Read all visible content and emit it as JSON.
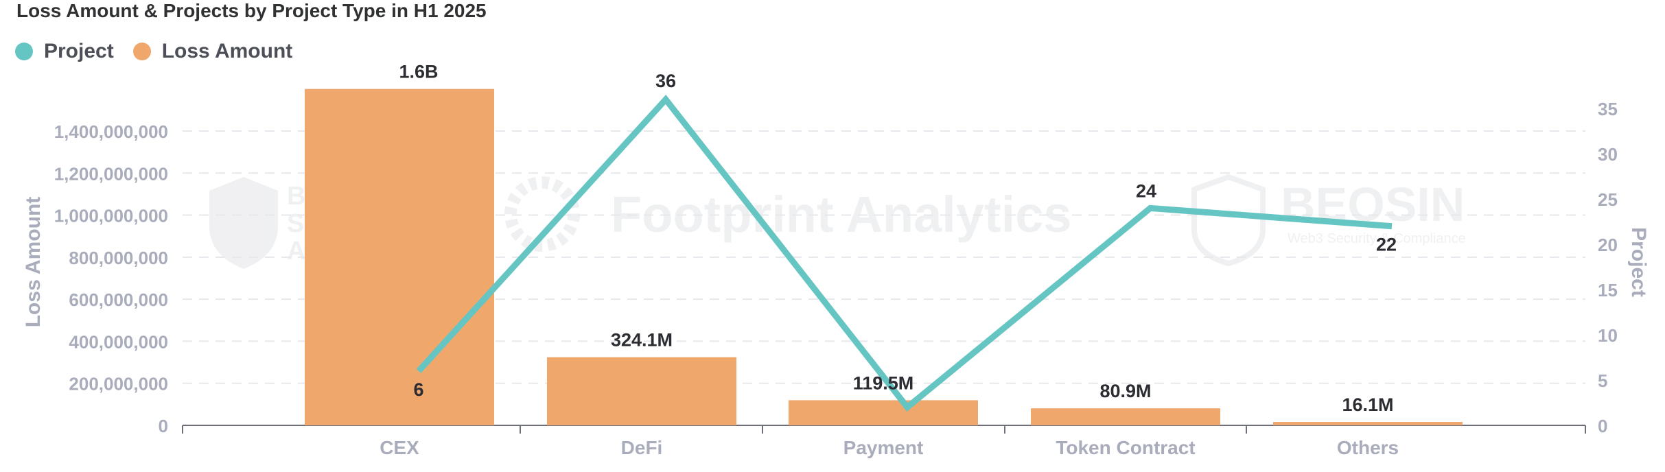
{
  "title": "Loss Amount & Projects by Project Type in H1 2025",
  "legend": [
    {
      "label": "Project",
      "color": "#64C5C3"
    },
    {
      "label": "Loss Amount",
      "color": "#F0A76C"
    }
  ],
  "watermarks": {
    "left": [
      "Blockchain",
      "Security",
      "Alliance"
    ],
    "center": "Footprint Analytics",
    "right": "BEOSIN",
    "right_sub": "Web3 Security & Compliance"
  },
  "chart_data": {
    "type": "bar",
    "title": "Loss Amount & Projects by Project Type in H1 2025",
    "categories": [
      "CEX",
      "DeFi",
      "Payment",
      "Token Contract",
      "Others"
    ],
    "series": [
      {
        "name": "Loss Amount",
        "type": "bar",
        "axis": "left",
        "color": "#F0A76C",
        "values": [
          1600000000,
          324100000,
          119500000,
          80900000,
          16100000
        ],
        "labels": [
          "1.6B",
          "324.1M",
          "119.5M",
          "80.9M",
          "16.1M"
        ]
      },
      {
        "name": "Project",
        "type": "line",
        "axis": "right",
        "color": "#64C5C3",
        "values": [
          6,
          36,
          2,
          24,
          22
        ],
        "labels": [
          "6",
          "36",
          "",
          "24",
          "22"
        ]
      }
    ],
    "y_left": {
      "label": "Loss Amount",
      "range": [
        0,
        1550000000
      ],
      "ticks": [
        0,
        200000000,
        400000000,
        600000000,
        800000000,
        1000000000,
        1200000000,
        1400000000
      ],
      "tick_labels": [
        "0",
        "200,000,000",
        "400,000,000",
        "600,000,000",
        "800,000,000",
        "1,000,000,000",
        "1,200,000,000",
        "1,400,000,000"
      ]
    },
    "y_right": {
      "label": "Project",
      "range": [
        0,
        36
      ],
      "ticks": [
        0,
        5,
        10,
        15,
        20,
        25,
        30,
        35
      ],
      "tick_labels": [
        "0",
        "5",
        "10",
        "15",
        "20",
        "25",
        "30",
        "35"
      ]
    },
    "grid": true,
    "legend_position": "top-left"
  }
}
